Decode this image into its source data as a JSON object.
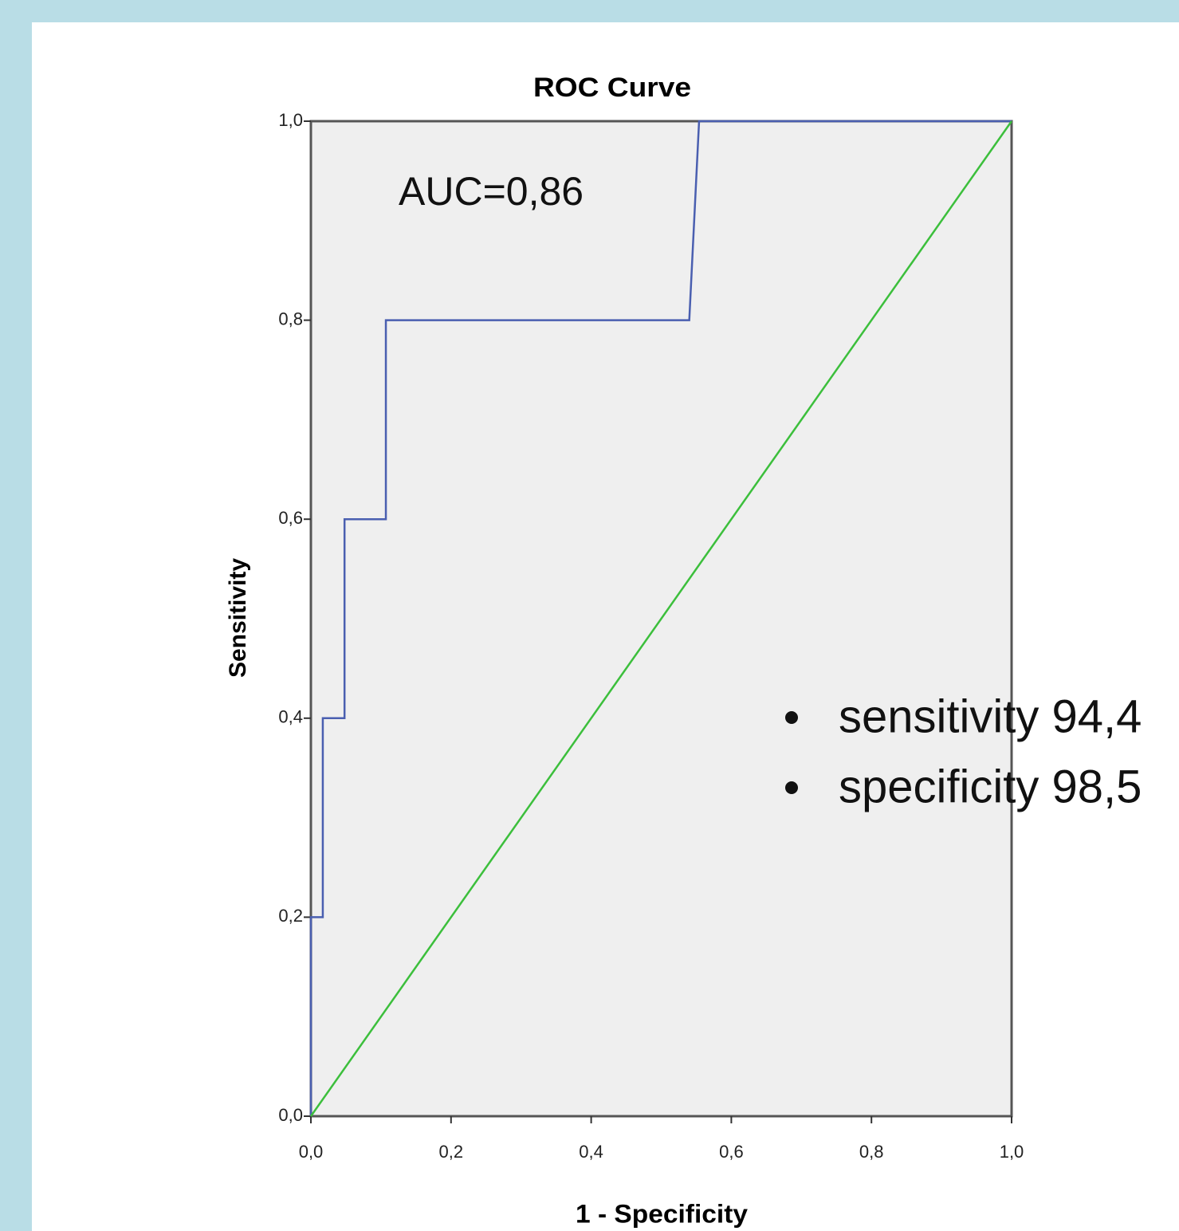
{
  "chart_data": {
    "type": "line",
    "title": "ROC Curve",
    "x_label": "1 - Specificity",
    "y_label": "Sensitivity",
    "annotations": [
      "AUC=0,86",
      "sensitivity 94,4",
      "specificity 98,5"
    ],
    "xlim": [
      0,
      1
    ],
    "ylim": [
      0,
      1
    ],
    "xticks": [
      {
        "value": 0,
        "label": "0,0"
      },
      {
        "value": 0.2,
        "label": "0,2"
      },
      {
        "value": 0.4,
        "label": "0,4"
      },
      {
        "value": 0.6,
        "label": "0,6"
      },
      {
        "value": 0.8,
        "label": "0,8"
      },
      {
        "value": 1,
        "label": "1,0"
      }
    ],
    "yticks": [
      {
        "value": 0,
        "label": "0,0"
      },
      {
        "value": 0.2,
        "label": "0,2"
      },
      {
        "value": 0.4,
        "label": "0,4"
      },
      {
        "value": 0.6,
        "label": "0,6"
      },
      {
        "value": 0.8,
        "label": "0,8"
      },
      {
        "value": 1,
        "label": "1,0"
      }
    ],
    "series": [
      {
        "color": "#4a5fb0",
        "x": [
          0,
          0,
          0.017,
          0.017,
          0.048,
          0.048,
          0.107,
          0.107,
          0.54,
          0.554,
          1
        ],
        "values": [
          0,
          0.2,
          0.2,
          0.4,
          0.4,
          0.6,
          0.6,
          0.8,
          0.8,
          1,
          1
        ]
      },
      {
        "color": "#3cbf3c",
        "x": [
          0,
          1
        ],
        "values": [
          0,
          1
        ]
      }
    ]
  }
}
